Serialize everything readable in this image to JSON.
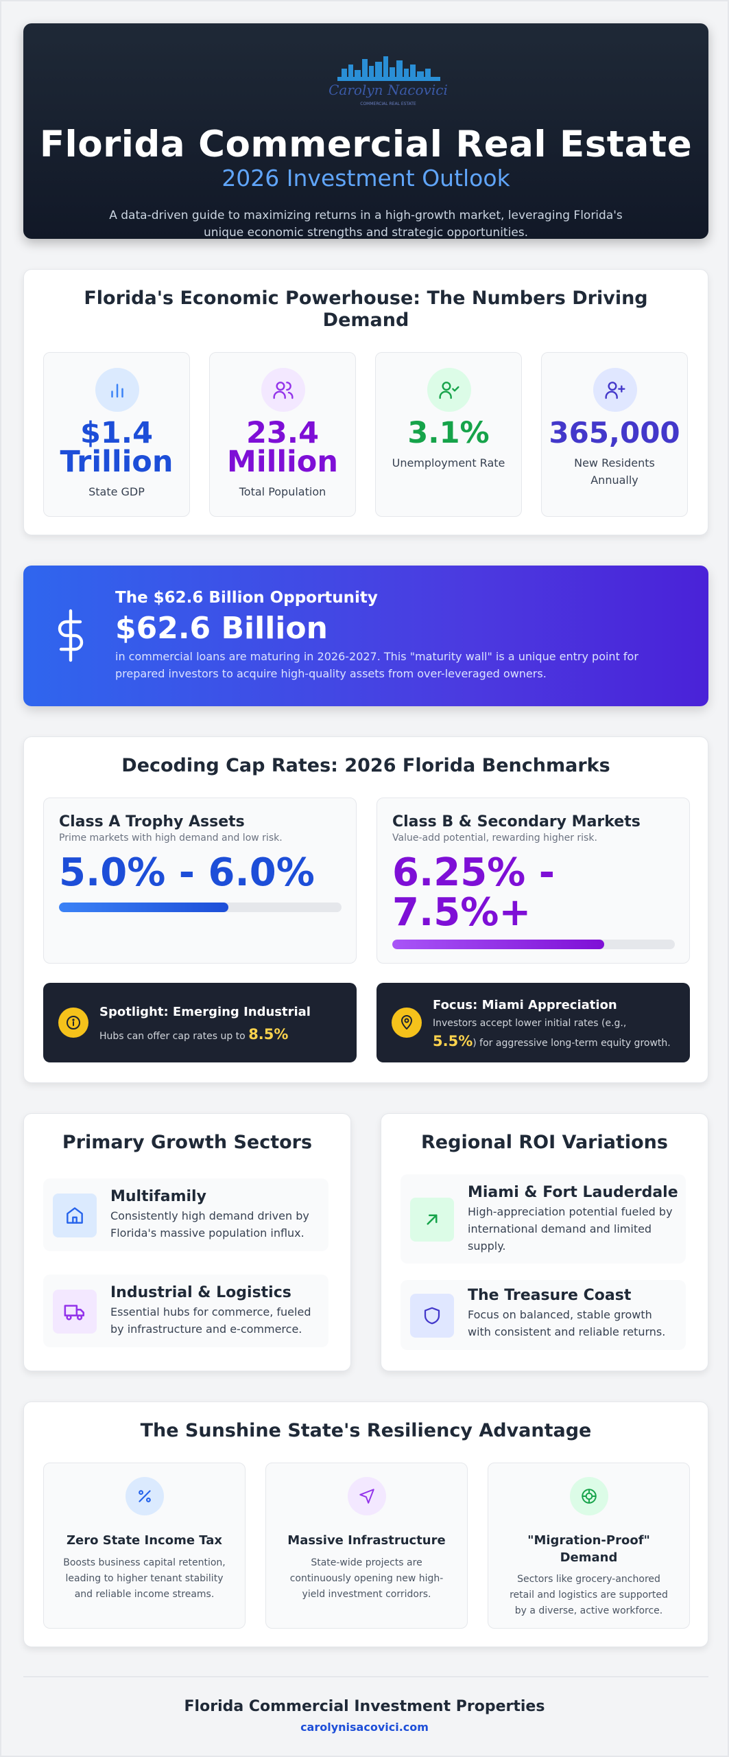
{
  "logo": {
    "script_text": "Carolyn Nacovici",
    "tagline": "COMMERCIAL REAL ESTATE"
  },
  "hero": {
    "title": "Florida Commercial Real Estate",
    "subtitle": "2026 Investment Outlook",
    "description": "A data-driven guide to maximizing returns in a high-growth market, leveraging Florida's unique economic strengths and strategic opportunities."
  },
  "economy": {
    "title": "Florida's Economic Powerhouse: The Numbers Driving Demand",
    "stats": [
      {
        "value_line1": "$1.4",
        "value_line2": "Trillion",
        "label": "State GDP",
        "icon": "bar-chart-icon",
        "color": "#1d4ed8"
      },
      {
        "value_line1": "23.4",
        "value_line2": "Million",
        "label": "Total Population",
        "icon": "users-icon",
        "color": "#7e0fd6"
      },
      {
        "value_line1": "3.1%",
        "label": "Unemployment Rate",
        "icon": "user-check-icon",
        "color": "#16a34a"
      },
      {
        "value_line1": "365,000",
        "label": "New Residents Annually",
        "icon": "user-plus-icon",
        "color": "#4338ca"
      }
    ]
  },
  "opportunity": {
    "kicker": "The $62.6 Billion Opportunity",
    "amount": "$62.6 Billion",
    "description": "in commercial loans are maturing in 2026-2027. This \"maturity wall\" is a unique entry point for prepared investors to acquire high-quality assets from over-leveraged owners.",
    "icon": "dollar-icon"
  },
  "cap_rates": {
    "title": "Decoding Cap Rates: 2026 Florida Benchmarks",
    "class_a": {
      "title": "Class A Trophy Assets",
      "subtitle": "Prime markets with high demand and low risk.",
      "range": "5.0% - 6.0%",
      "bar_fill": 0.6,
      "color": "#1d4ed8"
    },
    "class_b": {
      "title": "Class B & Secondary Markets",
      "subtitle": "Value-add potential, rewarding higher risk.",
      "range_line1": "6.25% -",
      "range_line2": "7.5%+",
      "bar_fill": 0.75,
      "color": "#7e0fd6"
    },
    "spotlight": {
      "title": "Spotlight: Emerging Industrial",
      "text": "Hubs can offer cap rates up to",
      "highlight": "8.5%",
      "icon": "info-icon"
    },
    "focus": {
      "title": "Focus: Miami Appreciation",
      "text_before": "Investors accept lower initial rates (e.g.,",
      "highlight": "5.5%",
      "text_after": ") for aggressive long-term equity growth.",
      "icon": "map-pin-icon"
    }
  },
  "sectors": {
    "title": "Primary Growth Sectors",
    "items": [
      {
        "title": "Multifamily",
        "text": "Consistently high demand driven by Florida's massive population influx.",
        "icon": "home-icon"
      },
      {
        "title": "Industrial & Logistics",
        "text": "Essential hubs for commerce, fueled by infrastructure and e-commerce.",
        "icon": "truck-icon"
      }
    ]
  },
  "regional": {
    "title": "Regional ROI Variations",
    "items": [
      {
        "title": "Miami & Fort Lauderdale",
        "text": "High-appreciation potential fueled by international demand and limited supply.",
        "icon": "arrow-up-right-icon"
      },
      {
        "title": "The Treasure Coast",
        "text": "Focus on balanced, stable growth with consistent and reliable returns.",
        "icon": "shield-icon"
      }
    ]
  },
  "resiliency": {
    "title": "The Sunshine State's Resiliency Advantage",
    "items": [
      {
        "title": "Zero State Income Tax",
        "text": "Boosts business capital retention, leading to higher tenant stability and reliable income streams.",
        "icon": "percent-icon"
      },
      {
        "title": "Massive Infrastructure",
        "text": "State-wide projects are continuously opening new high-yield investment corridors.",
        "icon": "navigation-icon"
      },
      {
        "title": "\"Migration-Proof\" Demand",
        "text": "Sectors like grocery-anchored retail and logistics are supported by a diverse, active workforce.",
        "icon": "lifebuoy-icon"
      }
    ]
  },
  "footer": {
    "title": "Florida Commercial Investment Properties",
    "link": "carolynisacovici.com"
  }
}
